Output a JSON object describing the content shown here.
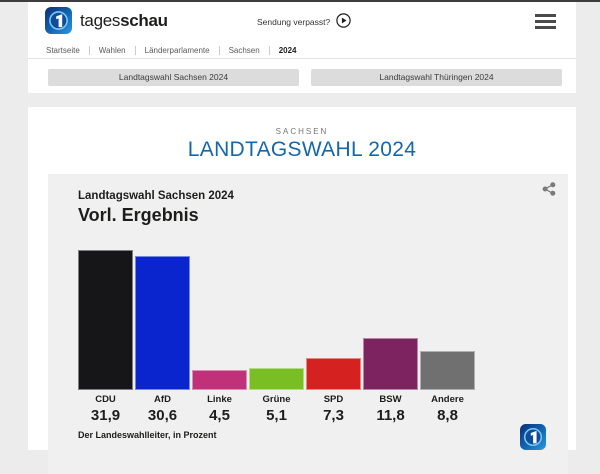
{
  "header": {
    "brand": {
      "light": "tages",
      "bold": "schau"
    },
    "watch_link": "Sendung verpasst?",
    "breadcrumb": [
      "Startseite",
      "Wahlen",
      "Länderparlamente",
      "Sachsen",
      "2024"
    ]
  },
  "region_tabs": [
    {
      "label": "Landtagswahl Sachsen 2024"
    },
    {
      "label": "Landtagswahl Thüringen 2024"
    }
  ],
  "page": {
    "kicker": "SACHSEN",
    "title": "LANDTAGSWAHL 2024",
    "title_color": "#1467ab"
  },
  "icons": [
    "tagesschau-logo-icon",
    "play-icon",
    "menu-icon",
    "share-icon"
  ],
  "chart_data": {
    "type": "bar",
    "title": "Landtagswahl Sachsen 2024",
    "subtitle": "Vorl. Ergebnis",
    "source": "Der Landeswahlleiter, in Prozent",
    "categories": [
      "CDU",
      "AfD",
      "Linke",
      "Grüne",
      "SPD",
      "BSW",
      "Andere"
    ],
    "values": [
      31.9,
      30.6,
      4.5,
      5.1,
      7.3,
      11.8,
      8.8
    ],
    "value_labels": [
      "31,9",
      "30,6",
      "4,5",
      "5,1",
      "7,3",
      "11,8",
      "8,8"
    ],
    "colors": [
      "#161619",
      "#0a24ce",
      "#bf3179",
      "#79be23",
      "#d52221",
      "#7d2360",
      "#707070"
    ],
    "ylabel": "Prozent",
    "ylim": [
      0,
      32
    ],
    "grid": false,
    "legend": false
  }
}
